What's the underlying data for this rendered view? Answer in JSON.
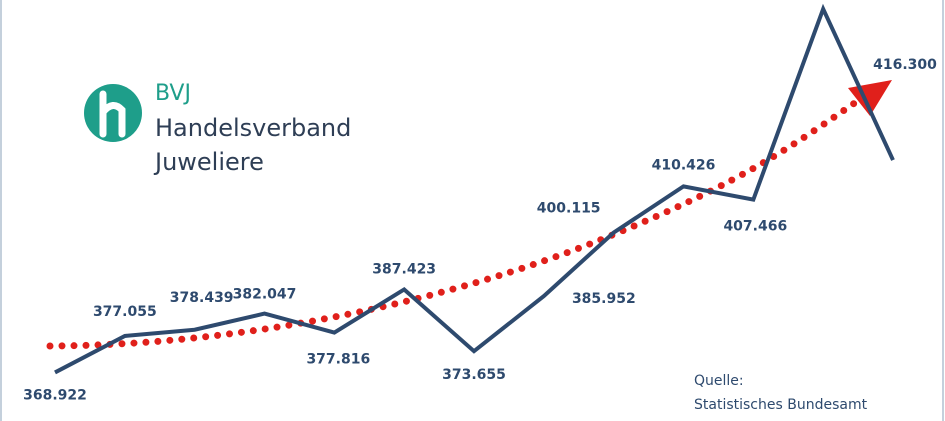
{
  "chart_data": {
    "type": "line",
    "series": [
      {
        "color": "#2e4a6e",
        "values": [
          368922,
          377055,
          378439,
          382047,
          377816,
          387423,
          373655,
          385952,
          400115,
          410426,
          407466,
          450000,
          416300
        ],
        "value_labels": [
          "368.922",
          "377.055",
          "378.439",
          "382.047",
          "377.816",
          "387.423",
          "373.655",
          "385.952",
          "400.115",
          "410.426",
          "407.466",
          null,
          "416.300"
        ]
      }
    ],
    "ylim": [
      365000,
      452000
    ],
    "trend_color": "#e0201b"
  },
  "logo": {
    "short": "BVJ",
    "line1": "Handelsverband",
    "line2": "Juweliere"
  },
  "source": {
    "line1": "Quelle:",
    "line2": "Statistisches Bundesamt"
  }
}
